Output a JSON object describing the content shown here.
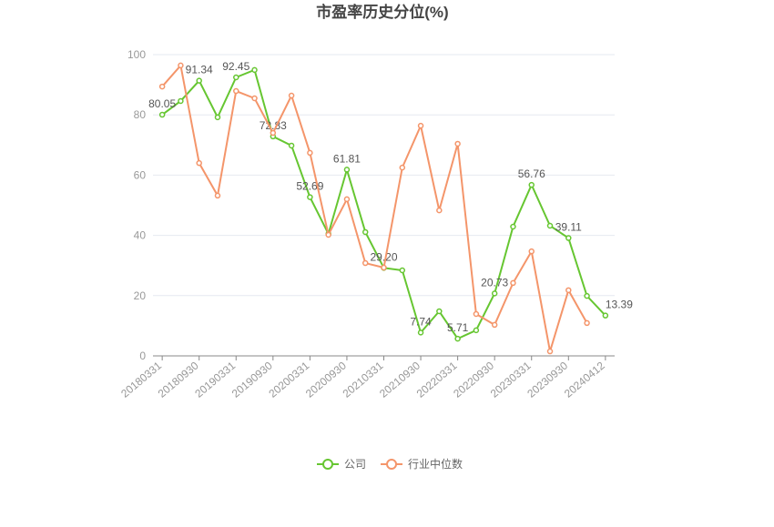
{
  "chart_data": {
    "type": "line",
    "title": "市盈率历史分位(%)",
    "categories": [
      "20180331",
      null,
      "20180930",
      null,
      "20190331",
      null,
      "20190930",
      null,
      "20200331",
      null,
      "20200930",
      null,
      "20210331",
      null,
      "20210930",
      null,
      "20220331",
      null,
      "20220930",
      null,
      "20230331",
      null,
      "20230930",
      null,
      "20240412"
    ],
    "series": [
      {
        "name": "公司",
        "color": "#66c631",
        "values": [
          80.05,
          84.6,
          91.34,
          79.2,
          92.45,
          94.9,
          72.83,
          69.8,
          52.69,
          40.5,
          61.81,
          41.1,
          29.2,
          28.4,
          7.74,
          14.8,
          5.71,
          8.5,
          20.73,
          42.9,
          56.76,
          43.2,
          39.11,
          19.9,
          13.39
        ],
        "value_labels": [
          "80.05",
          null,
          "91.34",
          null,
          "92.45",
          null,
          "72.83",
          null,
          "52.69",
          null,
          "61.81",
          null,
          "29.20",
          null,
          "7.74",
          null,
          "5.71",
          null,
          "20.73",
          null,
          "56.76",
          null,
          "39.11",
          null,
          "13.39"
        ]
      },
      {
        "name": "行业中位数",
        "color": "#f4956a",
        "values": [
          89.4,
          96.4,
          64,
          53.2,
          87.9,
          85.5,
          74,
          86.4,
          67.4,
          40.2,
          52,
          30.8,
          29.3,
          62.5,
          76.4,
          48.3,
          70.4,
          13.9,
          10.3,
          24.2,
          34.7,
          1.5,
          21.8,
          10.9,
          null
        ]
      }
    ],
    "ylim": [
      0,
      100
    ],
    "yticks": [
      0,
      20,
      40,
      60,
      80,
      100
    ],
    "grid": true,
    "legend": "bottom"
  }
}
